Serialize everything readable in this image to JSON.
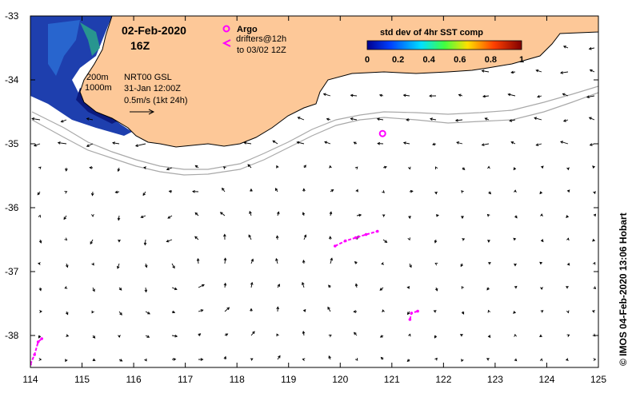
{
  "header": {
    "date": "02-Feb-2020",
    "hour": "16Z"
  },
  "legend": {
    "argo_label": "Argo",
    "drifters_label_1": "drifters@12h",
    "drifters_label_2": "to 03/02 12Z",
    "argo_color": "#ff00ff",
    "drifter_color": "#ff00ff"
  },
  "annotations": {
    "isobath_200": "200m",
    "isobath_1000": "1000m",
    "product": "NRT00 GSL",
    "analysis_time": "31-Jan 12:00Z",
    "scale_label": "0.5m/s (1kt 24h)"
  },
  "colorbar": {
    "title": "std dev of 4hr SST comp",
    "ticks": [
      "0",
      "0.2",
      "0.4",
      "0.6",
      "0.8",
      "1"
    ]
  },
  "axes": {
    "x_ticks": [
      "114",
      "115",
      "116",
      "117",
      "118",
      "119",
      "120",
      "121",
      "122",
      "123",
      "124",
      "125"
    ],
    "y_ticks": [
      "-33",
      "-34",
      "-35",
      "-36",
      "-37",
      "-38"
    ],
    "x_range": [
      114,
      125
    ],
    "y_range": [
      -38.5,
      -33
    ]
  },
  "credit": "© IMOS 04-Feb-2020 13:06 Hobart",
  "colors": {
    "land": "#fdc898",
    "coast": "#000000",
    "isobath": "#a9a9a9",
    "sst_low": "#0a1fa8"
  },
  "map_data": {
    "argo_floats": [
      [
        120.82,
        -34.84
      ]
    ],
    "drifter_tracks": [
      [
        [
          119.9,
          -36.6
        ],
        [
          120.1,
          -36.52
        ],
        [
          120.3,
          -36.47
        ],
        [
          120.5,
          -36.42
        ],
        [
          120.72,
          -36.37
        ]
      ],
      [
        [
          121.35,
          -37.75
        ],
        [
          121.38,
          -37.65
        ],
        [
          121.5,
          -37.62
        ]
      ],
      [
        [
          114.0,
          -38.45
        ],
        [
          114.08,
          -38.3
        ],
        [
          114.15,
          -38.1
        ],
        [
          114.22,
          -38.05
        ]
      ]
    ]
  }
}
